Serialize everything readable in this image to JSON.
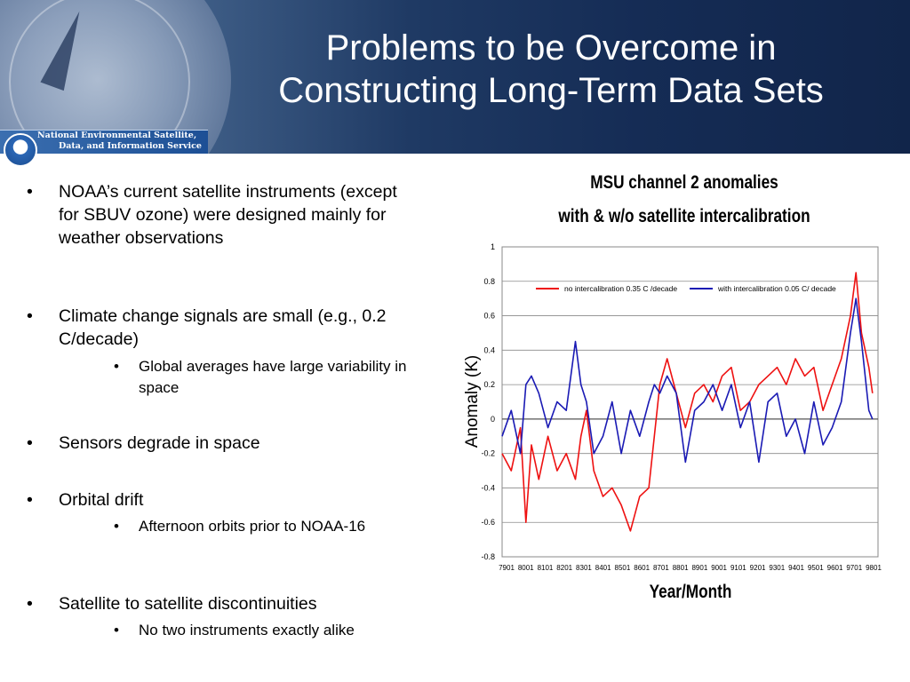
{
  "slide": {
    "title_line1": "Problems to be Overcome in",
    "title_line2": "Constructing Long-Term Data Sets",
    "logo_text_line1": "National Environmental Satellite,",
    "logo_text_line2": "Data, and Information Service",
    "logo_mark_text": "NOAA"
  },
  "bullets": [
    {
      "text": "NOAA’s current satellite instruments (except for SBUV ozone) were designed mainly for weather observations",
      "sub": []
    },
    {
      "text": "Climate change signals are small (e.g., 0.2 C/decade)",
      "sub": [
        "Global averages have large variability in space"
      ]
    },
    {
      "text": "Sensors degrade in space",
      "sub": []
    },
    {
      "text": "Orbital drift",
      "sub": [
        "Afternoon orbits prior to NOAA-16"
      ]
    },
    {
      "text": "Satellite to satellite discontinuities",
      "sub": [
        "No two instruments exactly alike"
      ]
    }
  ],
  "bullet_char": "•",
  "chart_data": {
    "type": "line",
    "title": "MSU channel 2 anomalies",
    "subtitle": "with & w/o satellite intercalibration",
    "xlabel": "Year/Month",
    "ylabel": "Anomaly (K)",
    "ylim": [
      -0.8,
      1.0
    ],
    "yticks": [
      "-0.8",
      "-0.6",
      "-0.4",
      "-0.2",
      "0",
      "0.2",
      "0.4",
      "0.6",
      "0.8",
      "1"
    ],
    "xticks": [
      "7901",
      "8001",
      "8101",
      "8201",
      "8301",
      "8401",
      "8501",
      "8601",
      "8701",
      "8801",
      "8901",
      "9001",
      "9101",
      "9201",
      "9301",
      "9401",
      "9501",
      "9601",
      "9701",
      "9801"
    ],
    "grid": true,
    "legend_position": "top",
    "series": [
      {
        "name": "no intercalibration  0.35 C /decade",
        "color": "#ee1111",
        "x": [
          1979.0,
          1979.5,
          1980.0,
          1980.3,
          1980.6,
          1981.0,
          1981.5,
          1982.0,
          1982.5,
          1983.0,
          1983.3,
          1983.6,
          1984.0,
          1984.5,
          1985.0,
          1985.5,
          1986.0,
          1986.5,
          1987.0,
          1987.3,
          1987.6,
          1988.0,
          1988.5,
          1989.0,
          1989.5,
          1990.0,
          1990.5,
          1991.0,
          1991.5,
          1992.0,
          1992.5,
          1993.0,
          1993.5,
          1994.0,
          1994.5,
          1995.0,
          1995.5,
          1996.0,
          1996.5,
          1997.0,
          1997.5,
          1998.0,
          1998.3,
          1998.6,
          1999.0,
          1999.2
        ],
        "y": [
          -0.2,
          -0.3,
          -0.05,
          -0.6,
          -0.15,
          -0.35,
          -0.1,
          -0.3,
          -0.2,
          -0.35,
          -0.1,
          0.05,
          -0.3,
          -0.45,
          -0.4,
          -0.5,
          -0.65,
          -0.45,
          -0.4,
          -0.1,
          0.2,
          0.35,
          0.15,
          -0.05,
          0.15,
          0.2,
          0.1,
          0.25,
          0.3,
          0.05,
          0.1,
          0.2,
          0.25,
          0.3,
          0.2,
          0.35,
          0.25,
          0.3,
          0.05,
          0.2,
          0.35,
          0.6,
          0.85,
          0.5,
          0.3,
          0.15
        ]
      },
      {
        "name": "with intercalibration 0.05 C/ decade",
        "color": "#1a1ab4",
        "x": [
          1979.0,
          1979.5,
          1980.0,
          1980.3,
          1980.6,
          1981.0,
          1981.5,
          1982.0,
          1982.5,
          1983.0,
          1983.3,
          1983.6,
          1984.0,
          1984.5,
          1985.0,
          1985.5,
          1986.0,
          1986.5,
          1987.0,
          1987.3,
          1987.6,
          1988.0,
          1988.5,
          1989.0,
          1989.5,
          1990.0,
          1990.5,
          1991.0,
          1991.5,
          1992.0,
          1992.5,
          1993.0,
          1993.5,
          1994.0,
          1994.5,
          1995.0,
          1995.5,
          1996.0,
          1996.5,
          1997.0,
          1997.5,
          1998.0,
          1998.3,
          1998.6,
          1999.0,
          1999.2
        ],
        "y": [
          -0.1,
          0.05,
          -0.2,
          0.2,
          0.25,
          0.15,
          -0.05,
          0.1,
          0.05,
          0.45,
          0.2,
          0.1,
          -0.2,
          -0.1,
          0.1,
          -0.2,
          0.05,
          -0.1,
          0.1,
          0.2,
          0.15,
          0.25,
          0.15,
          -0.25,
          0.05,
          0.1,
          0.2,
          0.05,
          0.2,
          -0.05,
          0.1,
          -0.25,
          0.1,
          0.15,
          -0.1,
          0.0,
          -0.2,
          0.1,
          -0.15,
          -0.05,
          0.1,
          0.5,
          0.7,
          0.45,
          0.05,
          0.0
        ]
      }
    ]
  }
}
